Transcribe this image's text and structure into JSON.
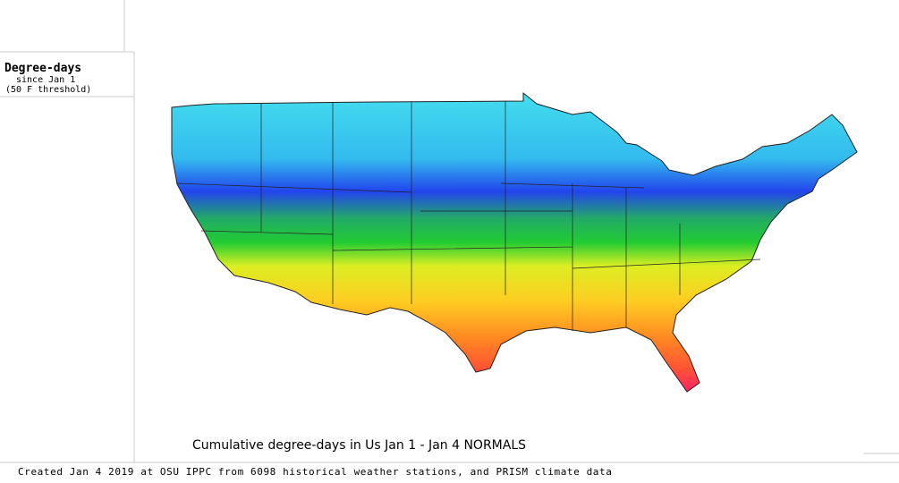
{
  "legend": {
    "title": "Degree-days",
    "subtitle": "since Jan 1",
    "threshold": "(50 F threshold)"
  },
  "map": {
    "title": "Cumulative degree-days in Us  Jan 1 - Jan 4 NORMALS"
  },
  "footer": "Created Jan 4 2019 at OSU IPPC from 6098 historical weather stations, and PRISM climate data"
}
